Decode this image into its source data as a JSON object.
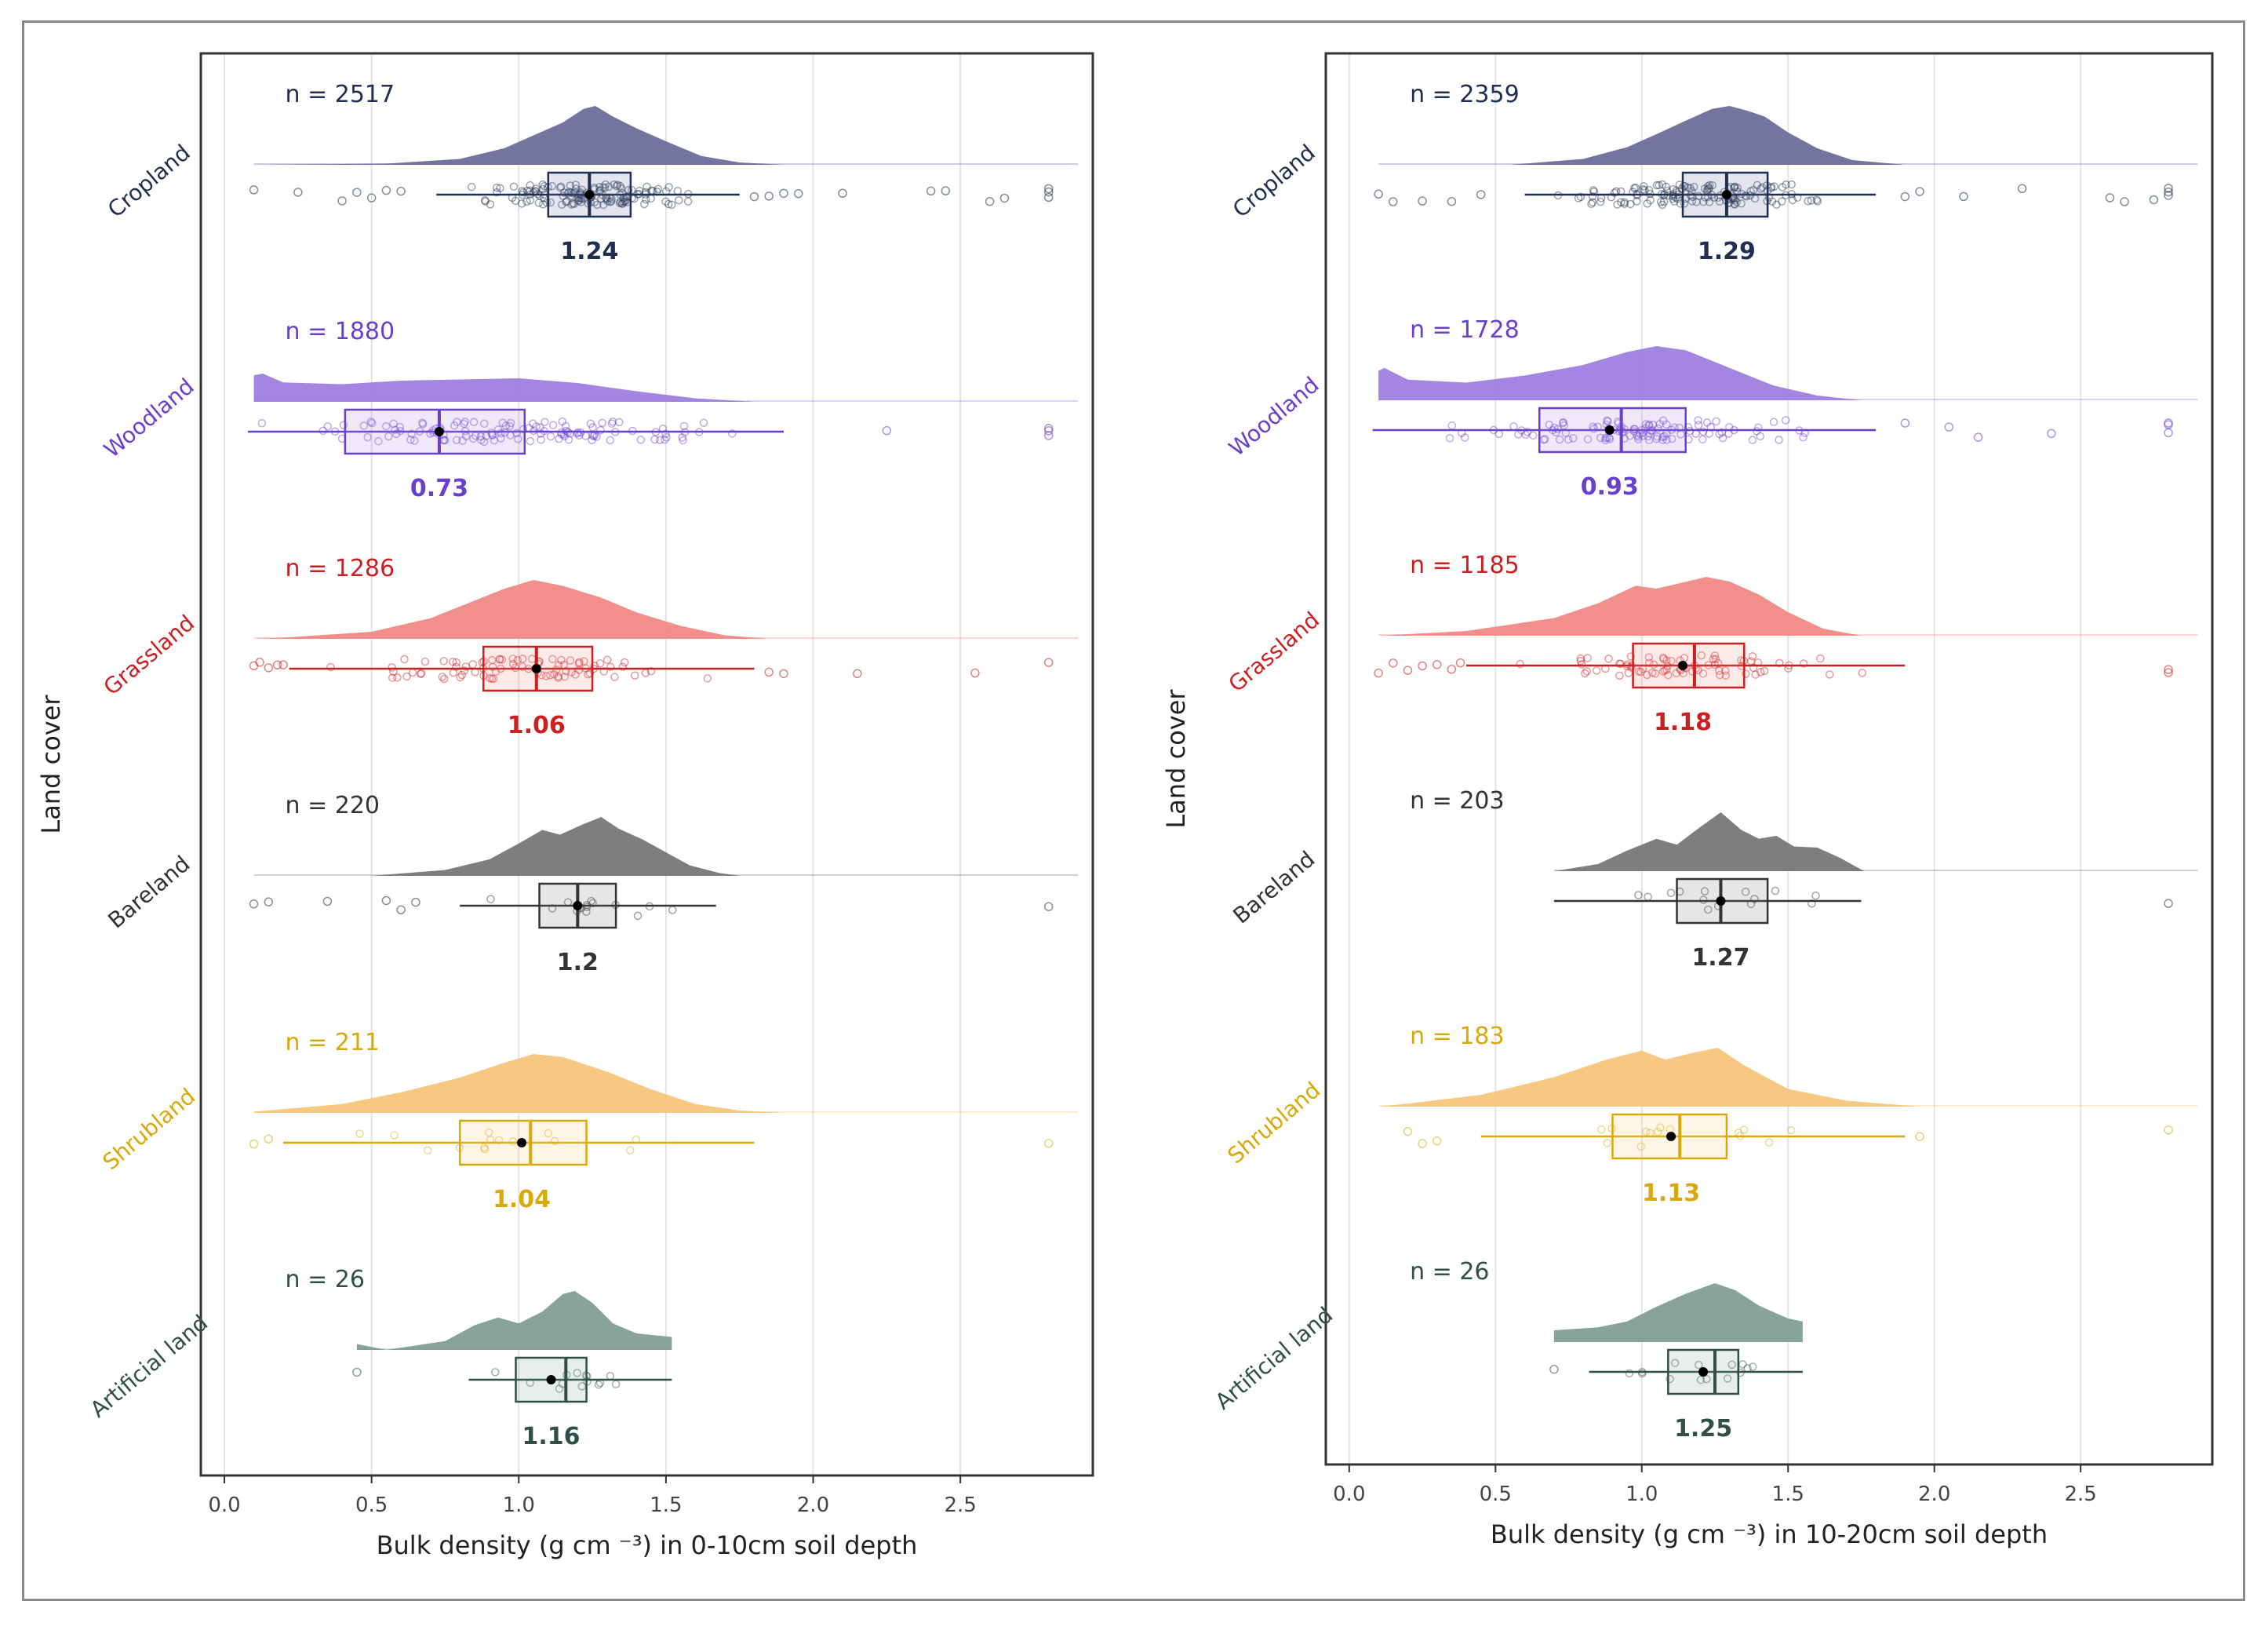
{
  "chart_data": [
    {
      "type": "raincloud",
      "xlabel": "Bulk density (g cm ⁻³) in 0-10cm soil depth",
      "ylabel": "Land cover",
      "xlim": [
        -0.08,
        2.95
      ],
      "xticks": [
        0.0,
        0.5,
        1.0,
        1.5,
        2.0,
        2.5
      ],
      "xtick_labels": [
        "0.0",
        "0.5",
        "1.0",
        "1.5",
        "2.0",
        "2.5"
      ],
      "grid": true,
      "groups": [
        {
          "name": "Cropland",
          "n_label": "n = 2517",
          "color": "#6b6e9b",
          "dark": "#1f2f52",
          "q1": 1.1,
          "median": 1.24,
          "q3": 1.38,
          "wl": 0.72,
          "wh": 1.75,
          "mean": 1.24,
          "mean_label": "1.24",
          "density": [
            [
              0.55,
              0.02
            ],
            [
              0.8,
              0.1
            ],
            [
              0.95,
              0.28
            ],
            [
              1.05,
              0.5
            ],
            [
              1.15,
              0.72
            ],
            [
              1.22,
              0.95
            ],
            [
              1.26,
              1.0
            ],
            [
              1.32,
              0.82
            ],
            [
              1.4,
              0.62
            ],
            [
              1.5,
              0.4
            ],
            [
              1.62,
              0.15
            ],
            [
              1.75,
              0.04
            ],
            [
              1.9,
              0.0
            ]
          ],
          "cloud_start": 0.1,
          "cloud_end": 2.9,
          "outliers": [
            0.1,
            0.25,
            0.4,
            0.45,
            0.5,
            0.55,
            0.6,
            1.8,
            1.85,
            1.9,
            1.95,
            2.1,
            2.4,
            2.45,
            2.6,
            2.65,
            2.8,
            2.8,
            2.8
          ]
        },
        {
          "name": "Woodland",
          "n_label": "n = 1880",
          "color": "#9f7fe0",
          "dark": "#6a3fd0",
          "q1": 0.41,
          "median": 0.73,
          "q3": 1.02,
          "wl": 0.08,
          "wh": 1.9,
          "mean": 0.73,
          "mean_label": "0.73",
          "density": [
            [
              0.1,
              0.45
            ],
            [
              0.13,
              0.48
            ],
            [
              0.2,
              0.33
            ],
            [
              0.4,
              0.3
            ],
            [
              0.6,
              0.36
            ],
            [
              0.8,
              0.38
            ],
            [
              1.0,
              0.4
            ],
            [
              1.2,
              0.32
            ],
            [
              1.4,
              0.18
            ],
            [
              1.6,
              0.06
            ],
            [
              1.8,
              0.0
            ]
          ],
          "cloud_start": 0.1,
          "cloud_end": 2.9,
          "outliers": [
            2.25,
            2.8,
            2.8,
            2.8
          ]
        },
        {
          "name": "Grassland",
          "n_label": "n = 1286",
          "color": "#f08a84",
          "dark": "#cc1f1f",
          "q1": 0.88,
          "median": 1.06,
          "q3": 1.25,
          "wl": 0.22,
          "wh": 1.8,
          "mean": 1.06,
          "mean_label": "1.06",
          "density": [
            [
              0.2,
              0.02
            ],
            [
              0.5,
              0.12
            ],
            [
              0.7,
              0.35
            ],
            [
              0.85,
              0.65
            ],
            [
              0.95,
              0.85
            ],
            [
              1.05,
              1.0
            ],
            [
              1.15,
              0.9
            ],
            [
              1.28,
              0.7
            ],
            [
              1.4,
              0.45
            ],
            [
              1.55,
              0.22
            ],
            [
              1.7,
              0.06
            ],
            [
              1.85,
              0.0
            ]
          ],
          "cloud_start": 0.1,
          "cloud_end": 2.9,
          "outliers": [
            0.1,
            0.12,
            0.15,
            0.18,
            0.2,
            1.85,
            1.9,
            2.15,
            2.55,
            2.8
          ]
        },
        {
          "name": "Bareland",
          "n_label": "n = 220",
          "color": "#777777",
          "dark": "#333333",
          "q1": 1.07,
          "median": 1.2,
          "q3": 1.33,
          "wl": 0.8,
          "wh": 1.67,
          "mean": 1.2,
          "mean_label": "1.2",
          "density": [
            [
              0.5,
              0.0
            ],
            [
              0.75,
              0.1
            ],
            [
              0.9,
              0.28
            ],
            [
              1.0,
              0.55
            ],
            [
              1.08,
              0.78
            ],
            [
              1.14,
              0.7
            ],
            [
              1.22,
              0.88
            ],
            [
              1.28,
              1.0
            ],
            [
              1.34,
              0.8
            ],
            [
              1.42,
              0.62
            ],
            [
              1.5,
              0.4
            ],
            [
              1.58,
              0.18
            ],
            [
              1.68,
              0.05
            ],
            [
              1.75,
              0.0
            ]
          ],
          "cloud_start": 0.1,
          "cloud_end": 2.9,
          "outliers": [
            0.1,
            0.15,
            0.35,
            0.55,
            0.6,
            0.65,
            2.8
          ]
        },
        {
          "name": "Shrubland",
          "n_label": "n = 211",
          "color": "#f7c57a",
          "dark": "#d9a90b",
          "q1": 0.8,
          "median": 1.04,
          "q3": 1.23,
          "wl": 0.2,
          "wh": 1.8,
          "mean": 1.01,
          "mean_label": "1.04",
          "density": [
            [
              0.1,
              0.02
            ],
            [
              0.4,
              0.15
            ],
            [
              0.6,
              0.35
            ],
            [
              0.8,
              0.6
            ],
            [
              0.95,
              0.85
            ],
            [
              1.05,
              1.0
            ],
            [
              1.15,
              0.95
            ],
            [
              1.3,
              0.7
            ],
            [
              1.45,
              0.4
            ],
            [
              1.6,
              0.15
            ],
            [
              1.75,
              0.04
            ],
            [
              1.9,
              0.0
            ]
          ],
          "cloud_start": 0.1,
          "cloud_end": 2.9,
          "outliers": [
            0.1,
            0.15,
            2.8
          ]
        },
        {
          "name": "Artificial land",
          "n_label": "n = 26",
          "color": "#7f9f91",
          "dark": "#2f4f48",
          "q1": 0.99,
          "median": 1.16,
          "q3": 1.23,
          "wl": 0.83,
          "wh": 1.52,
          "mean": 1.11,
          "mean_label": "1.16",
          "density": [
            [
              0.45,
              0.1
            ],
            [
              0.55,
              0.0
            ],
            [
              0.75,
              0.15
            ],
            [
              0.85,
              0.42
            ],
            [
              0.93,
              0.55
            ],
            [
              1.0,
              0.45
            ],
            [
              1.08,
              0.65
            ],
            [
              1.15,
              0.95
            ],
            [
              1.19,
              1.0
            ],
            [
              1.25,
              0.8
            ],
            [
              1.32,
              0.45
            ],
            [
              1.4,
              0.28
            ],
            [
              1.52,
              0.22
            ],
            [
              1.52,
              0.0
            ]
          ],
          "cloud_start": 0.45,
          "cloud_end": 1.52,
          "outliers": [
            0.45
          ]
        }
      ]
    },
    {
      "type": "raincloud",
      "xlabel": "Bulk density (g cm ⁻³) in 10-20cm soil depth",
      "ylabel": "Land cover",
      "xlim": [
        -0.08,
        2.95
      ],
      "xticks": [
        0.0,
        0.5,
        1.0,
        1.5,
        2.0,
        2.5
      ],
      "xtick_labels": [
        "0.0",
        "0.5",
        "1.0",
        "1.5",
        "2.0",
        "2.5"
      ],
      "grid": true,
      "groups": [
        {
          "name": "Cropland",
          "n_label": "n = 2359",
          "color": "#6b6e9b",
          "dark": "#1f2f52",
          "q1": 1.14,
          "median": 1.29,
          "q3": 1.43,
          "wl": 0.6,
          "wh": 1.8,
          "mean": 1.29,
          "mean_label": "1.29",
          "density": [
            [
              0.55,
              0.0
            ],
            [
              0.8,
              0.1
            ],
            [
              0.95,
              0.3
            ],
            [
              1.05,
              0.52
            ],
            [
              1.15,
              0.75
            ],
            [
              1.24,
              0.95
            ],
            [
              1.3,
              1.0
            ],
            [
              1.36,
              0.92
            ],
            [
              1.42,
              0.82
            ],
            [
              1.5,
              0.55
            ],
            [
              1.6,
              0.28
            ],
            [
              1.72,
              0.08
            ],
            [
              1.9,
              0.0
            ]
          ],
          "cloud_start": 0.1,
          "cloud_end": 2.9,
          "outliers": [
            0.1,
            0.15,
            0.25,
            0.35,
            0.45,
            1.9,
            1.95,
            2.1,
            2.3,
            2.6,
            2.65,
            2.75,
            2.8,
            2.8,
            2.8
          ]
        },
        {
          "name": "Woodland",
          "n_label": "n = 1728",
          "color": "#9f7fe0",
          "dark": "#6a3fd0",
          "q1": 0.65,
          "median": 0.93,
          "q3": 1.15,
          "wl": 0.08,
          "wh": 1.8,
          "mean": 0.89,
          "mean_label": "0.93",
          "density": [
            [
              0.1,
              0.5
            ],
            [
              0.12,
              0.55
            ],
            [
              0.2,
              0.35
            ],
            [
              0.4,
              0.3
            ],
            [
              0.6,
              0.42
            ],
            [
              0.8,
              0.6
            ],
            [
              0.95,
              0.82
            ],
            [
              1.05,
              0.92
            ],
            [
              1.15,
              0.85
            ],
            [
              1.3,
              0.55
            ],
            [
              1.45,
              0.25
            ],
            [
              1.6,
              0.08
            ],
            [
              1.75,
              0.0
            ]
          ],
          "cloud_start": 0.1,
          "cloud_end": 2.9,
          "outliers": [
            1.9,
            2.05,
            2.15,
            2.4,
            2.8,
            2.8,
            2.8
          ]
        },
        {
          "name": "Grassland",
          "n_label": "n = 1185",
          "color": "#f08a84",
          "dark": "#cc1f1f",
          "q1": 0.97,
          "median": 1.18,
          "q3": 1.35,
          "wl": 0.4,
          "wh": 1.9,
          "mean": 1.14,
          "mean_label": "1.18",
          "density": [
            [
              0.1,
              0.0
            ],
            [
              0.4,
              0.08
            ],
            [
              0.7,
              0.3
            ],
            [
              0.85,
              0.55
            ],
            [
              0.98,
              0.85
            ],
            [
              1.05,
              0.8
            ],
            [
              1.12,
              0.88
            ],
            [
              1.22,
              1.0
            ],
            [
              1.3,
              0.92
            ],
            [
              1.4,
              0.7
            ],
            [
              1.5,
              0.4
            ],
            [
              1.62,
              0.12
            ],
            [
              1.75,
              0.0
            ]
          ],
          "cloud_start": 0.1,
          "cloud_end": 2.9,
          "outliers": [
            0.1,
            0.15,
            0.2,
            0.25,
            0.3,
            0.35,
            0.38,
            2.8,
            2.8
          ]
        },
        {
          "name": "Bareland",
          "n_label": "n = 203",
          "color": "#777777",
          "dark": "#333333",
          "q1": 1.12,
          "median": 1.27,
          "q3": 1.43,
          "wl": 0.7,
          "wh": 1.75,
          "mean": 1.27,
          "mean_label": "1.27",
          "density": [
            [
              0.7,
              0.0
            ],
            [
              0.85,
              0.12
            ],
            [
              0.95,
              0.35
            ],
            [
              1.05,
              0.55
            ],
            [
              1.12,
              0.45
            ],
            [
              1.2,
              0.75
            ],
            [
              1.27,
              1.0
            ],
            [
              1.34,
              0.7
            ],
            [
              1.4,
              0.55
            ],
            [
              1.46,
              0.6
            ],
            [
              1.52,
              0.42
            ],
            [
              1.6,
              0.4
            ],
            [
              1.68,
              0.22
            ],
            [
              1.76,
              0.0
            ]
          ],
          "cloud_start": 0.7,
          "cloud_end": 2.9,
          "outliers": [
            2.8
          ]
        },
        {
          "name": "Shrubland",
          "n_label": "n = 183",
          "color": "#f7c57a",
          "dark": "#d9a90b",
          "q1": 0.9,
          "median": 1.13,
          "q3": 1.29,
          "wl": 0.45,
          "wh": 1.9,
          "mean": 1.1,
          "mean_label": "1.13",
          "density": [
            [
              0.1,
              0.0
            ],
            [
              0.2,
              0.05
            ],
            [
              0.45,
              0.2
            ],
            [
              0.7,
              0.5
            ],
            [
              0.88,
              0.8
            ],
            [
              1.0,
              0.95
            ],
            [
              1.08,
              0.8
            ],
            [
              1.18,
              0.92
            ],
            [
              1.26,
              1.0
            ],
            [
              1.35,
              0.7
            ],
            [
              1.5,
              0.3
            ],
            [
              1.7,
              0.1
            ],
            [
              1.95,
              0.0
            ]
          ],
          "cloud_start": 0.1,
          "cloud_end": 2.9,
          "outliers": [
            0.2,
            0.25,
            0.3,
            1.95,
            2.8
          ]
        },
        {
          "name": "Artificial land",
          "n_label": "n = 26",
          "color": "#7f9f91",
          "dark": "#2f4f48",
          "q1": 1.09,
          "median": 1.25,
          "q3": 1.33,
          "wl": 0.82,
          "wh": 1.55,
          "mean": 1.21,
          "mean_label": "1.25",
          "density": [
            [
              0.7,
              0.08
            ],
            [
              0.7,
              0.2
            ],
            [
              0.85,
              0.25
            ],
            [
              0.95,
              0.35
            ],
            [
              1.05,
              0.6
            ],
            [
              1.15,
              0.82
            ],
            [
              1.25,
              1.0
            ],
            [
              1.32,
              0.88
            ],
            [
              1.4,
              0.62
            ],
            [
              1.5,
              0.4
            ],
            [
              1.55,
              0.35
            ],
            [
              1.55,
              0.0
            ]
          ],
          "cloud_start": 0.7,
          "cloud_end": 1.55,
          "outliers": [
            0.7
          ]
        }
      ]
    }
  ]
}
